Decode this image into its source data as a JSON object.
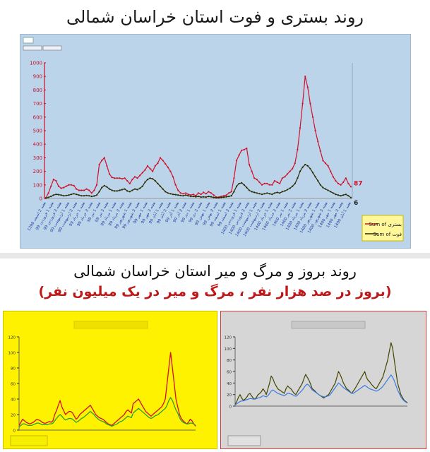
{
  "page": {
    "title_top": "روند بستری و فوت استان خراسان شمالی",
    "title_bottom": "روند بروز و مرگ و میر استان خراسان شمالی",
    "subtitle_bottom": "(بروز در صد هزار نفر ، مرگ و میر در یک میلیون نفر)"
  },
  "colors": {
    "panel_blue": "#bcd4ea",
    "panel_yellow": "#fff200",
    "panel_gray": "#d6d6d6",
    "series_red": "#d0102a",
    "series_dark": "#2a2a00",
    "series_green": "#2ca02c",
    "series_blue": "#3a7be0",
    "series_olive": "#444400"
  },
  "chart_data": [
    {
      "type": "line",
      "ylim": [
        0,
        1000
      ],
      "y_ticks": [
        0,
        100,
        200,
        300,
        400,
        500,
        600,
        700,
        800,
        900,
        1000
      ],
      "x_tick_labels": [
        "هفته 2 اسفند 1398",
        "هفته 1 فروردین 99",
        "هفته 3 فروردین 99",
        "هفته 1 اردیبهشت 99",
        "هفته 3 اردیبهشت 99",
        "هفته 1 خرداد 99",
        "هفته 3 خرداد 99",
        "هفته 1 تیر 99",
        "هفته 3 تیر 99",
        "هفته 1 مرداد 99",
        "هفته 3 مرداد 99",
        "هفته 1 شهریور 99",
        "هفته 3 شهریور 99",
        "هفته 1 مهر 99",
        "هفته 3 مهر 99",
        "هفته 1 آبان 99",
        "هفته 3 آبان 99",
        "هفته 1 آذر 99",
        "هفته 3 آذر 99",
        "هفته 1 دی 99",
        "هفته 3 دی 99",
        "هفته 1 بهمن 99",
        "هفته 3 بهمن 99",
        "هفته 1 اسفند 99",
        "هفته 3 اسفند 99",
        "هفته 1 فروردین 1400",
        "هفته 3 فروردین 1400",
        "هفته 1 اردیبهشت 1400",
        "هفته 3 اردیبهشت 1400",
        "هفته 1 خرداد 1400",
        "هفته 3 خرداد 1400",
        "هفته 1 تیر 1400",
        "هفته 3 تیر 1400",
        "هفته 1 مرداد 1400",
        "هفته 3 مرداد 1400",
        "هفته 1 شهریور 1400",
        "هفته 3 شهریور 1400",
        "هفته 1 مهر 1400",
        "هفته 3 مهر 1400",
        "هفته 1 آبان 1400"
      ],
      "legend": [
        "Sum of بستری",
        "Sum of فوت"
      ],
      "legend_position": "right",
      "end_labels": [
        "87",
        "6"
      ],
      "series": [
        {
          "name": "Sum of بستری",
          "color": "#d0102a",
          "values": [
            5,
            40,
            90,
            140,
            130,
            90,
            75,
            80,
            90,
            100,
            100,
            95,
            70,
            60,
            60,
            60,
            70,
            60,
            40,
            60,
            100,
            250,
            280,
            300,
            240,
            180,
            155,
            150,
            150,
            150,
            145,
            150,
            130,
            110,
            140,
            160,
            150,
            170,
            190,
            210,
            240,
            220,
            200,
            240,
            260,
            300,
            280,
            255,
            230,
            200,
            160,
            100,
            60,
            40,
            35,
            40,
            30,
            25,
            30,
            20,
            40,
            30,
            45,
            35,
            50,
            40,
            25,
            10,
            10,
            15,
            20,
            25,
            40,
            50,
            150,
            280,
            320,
            355,
            360,
            370,
            250,
            200,
            150,
            140,
            120,
            100,
            110,
            110,
            100,
            100,
            130,
            120,
            110,
            150,
            160,
            180,
            200,
            220,
            260,
            360,
            520,
            700,
            900,
            820,
            700,
            600,
            500,
            420,
            350,
            280,
            260,
            240,
            200,
            160,
            130,
            110,
            100,
            120,
            150,
            110,
            87
          ]
        },
        {
          "name": "Sum of فوت",
          "color": "#2a2a00",
          "values": [
            2,
            8,
            15,
            25,
            30,
            28,
            25,
            20,
            22,
            25,
            30,
            35,
            30,
            25,
            20,
            20,
            22,
            20,
            15,
            18,
            25,
            50,
            80,
            95,
            85,
            70,
            60,
            55,
            55,
            60,
            65,
            70,
            55,
            50,
            60,
            70,
            65,
            75,
            90,
            120,
            140,
            150,
            145,
            130,
            110,
            90,
            70,
            50,
            40,
            35,
            30,
            28,
            25,
            22,
            20,
            25,
            20,
            15,
            15,
            12,
            15,
            10,
            12,
            10,
            15,
            12,
            8,
            5,
            5,
            8,
            10,
            12,
            15,
            20,
            50,
            90,
            110,
            115,
            100,
            80,
            60,
            50,
            45,
            40,
            35,
            30,
            35,
            40,
            35,
            30,
            40,
            45,
            40,
            50,
            55,
            65,
            75,
            90,
            110,
            150,
            200,
            230,
            250,
            240,
            220,
            190,
            160,
            130,
            100,
            80,
            70,
            60,
            50,
            40,
            30,
            25,
            20,
            25,
            30,
            20,
            6
          ]
        }
      ]
    },
    {
      "type": "line",
      "ylim": [
        0,
        120
      ],
      "y_ticks": [
        0,
        20,
        40,
        60,
        80,
        100,
        120
      ],
      "series": [
        {
          "name": "",
          "color": "#d0102a",
          "values": [
            6,
            10,
            14,
            12,
            10,
            9,
            8,
            9,
            10,
            12,
            14,
            13,
            12,
            10,
            9,
            9,
            10,
            11,
            10,
            12,
            20,
            25,
            32,
            38,
            30,
            25,
            20,
            22,
            24,
            24,
            22,
            18,
            14,
            16,
            20,
            22,
            24,
            26,
            28,
            30,
            32,
            28,
            24,
            20,
            18,
            16,
            15,
            14,
            12,
            10,
            8,
            7,
            6,
            8,
            10,
            12,
            14,
            16,
            18,
            20,
            24,
            26,
            24,
            22,
            34,
            36,
            38,
            40,
            36,
            32,
            28,
            24,
            22,
            20,
            18,
            20,
            22,
            24,
            26,
            28,
            30,
            34,
            40,
            60,
            80,
            100,
            80,
            60,
            40,
            30,
            20,
            15,
            12,
            10,
            8,
            10,
            14,
            12,
            8,
            5
          ]
        },
        {
          "name": "",
          "color": "#2ca02c",
          "values": [
            4,
            6,
            8,
            8,
            7,
            6,
            6,
            6,
            7,
            8,
            9,
            9,
            8,
            7,
            7,
            7,
            7,
            8,
            8,
            9,
            12,
            15,
            18,
            20,
            18,
            15,
            13,
            14,
            15,
            15,
            14,
            12,
            10,
            11,
            13,
            15,
            16,
            18,
            20,
            22,
            24,
            22,
            20,
            17,
            15,
            13,
            12,
            11,
            10,
            8,
            7,
            6,
            5,
            6,
            7,
            8,
            10,
            11,
            12,
            14,
            16,
            18,
            17,
            16,
            22,
            24,
            26,
            28,
            26,
            24,
            22,
            20,
            18,
            16,
            15,
            16,
            18,
            19,
            20,
            22,
            24,
            26,
            28,
            32,
            38,
            42,
            38,
            32,
            26,
            22,
            16,
            12,
            10,
            9,
            8,
            8,
            9,
            9,
            8,
            6
          ]
        }
      ]
    },
    {
      "type": "line",
      "ylim": [
        0,
        120
      ],
      "y_ticks": [
        0,
        20,
        40,
        60,
        80,
        100,
        120
      ],
      "series": [
        {
          "name": "",
          "color": "#444400",
          "values": [
            3,
            8,
            15,
            20,
            14,
            10,
            12,
            15,
            20,
            22,
            18,
            14,
            12,
            15,
            20,
            22,
            25,
            30,
            26,
            20,
            30,
            40,
            52,
            48,
            40,
            35,
            30,
            28,
            26,
            24,
            22,
            30,
            35,
            32,
            30,
            26,
            22,
            20,
            25,
            30,
            35,
            40,
            48,
            55,
            50,
            45,
            38,
            30,
            28,
            25,
            22,
            20,
            18,
            16,
            14,
            16,
            18,
            20,
            25,
            30,
            35,
            40,
            50,
            60,
            55,
            48,
            40,
            35,
            30,
            28,
            25,
            22,
            26,
            30,
            35,
            40,
            45,
            50,
            55,
            60,
            50,
            45,
            42,
            38,
            35,
            32,
            30,
            35,
            40,
            45,
            50,
            60,
            70,
            80,
            95,
            110,
            100,
            80,
            60,
            40,
            30,
            20,
            15,
            10,
            8,
            6
          ]
        },
        {
          "name": "",
          "color": "#3a7be0",
          "values": [
            2,
            4,
            6,
            8,
            9,
            9,
            10,
            11,
            12,
            13,
            13,
            12,
            12,
            13,
            14,
            15,
            16,
            18,
            17,
            16,
            18,
            22,
            26,
            28,
            26,
            24,
            22,
            21,
            20,
            19,
            18,
            20,
            22,
            22,
            21,
            20,
            18,
            17,
            19,
            22,
            25,
            28,
            32,
            36,
            38,
            36,
            32,
            28,
            26,
            24,
            22,
            20,
            18,
            17,
            16,
            16,
            17,
            18,
            20,
            24,
            28,
            32,
            36,
            40,
            38,
            35,
            32,
            30,
            28,
            26,
            24,
            22,
            22,
            24,
            26,
            28,
            30,
            32,
            34,
            36,
            34,
            32,
            30,
            29,
            28,
            27,
            26,
            27,
            29,
            31,
            34,
            38,
            42,
            46,
            50,
            54,
            50,
            44,
            36,
            28,
            22,
            16,
            12,
            9,
            7,
            5
          ]
        }
      ]
    }
  ]
}
